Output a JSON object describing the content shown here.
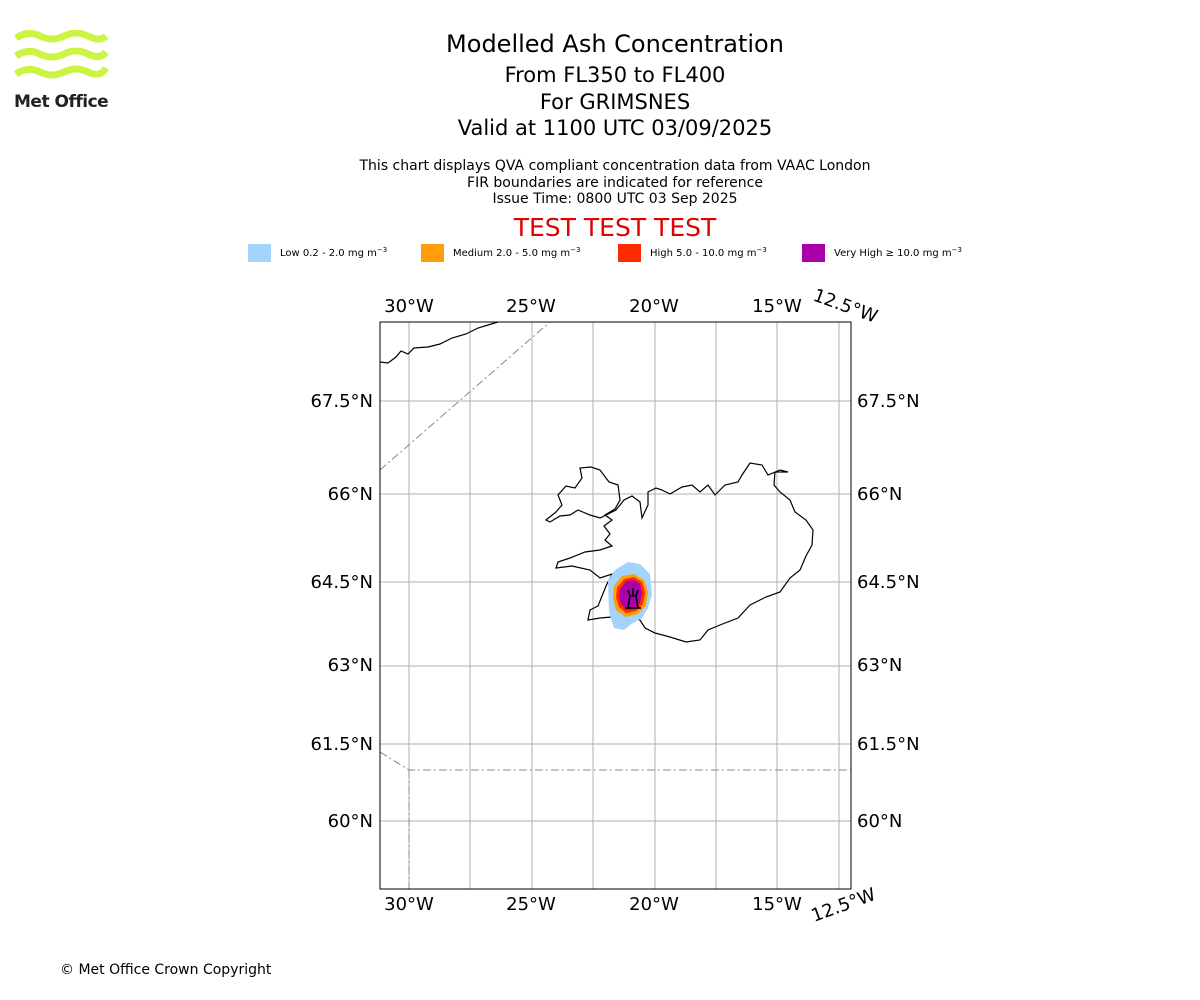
{
  "header": {
    "logo_text": "Met Office",
    "title": "Modelled Ash Concentration",
    "levels": "From FL350 to FL400",
    "volcano": "For GRIMSNES",
    "valid": "Valid at 1100 UTC 03/09/2025",
    "note1": "This chart displays QVA compliant concentration data from VAAC London",
    "note2": "FIR boundaries are indicated for reference",
    "issue": "Issue Time: 0800 UTC 03 Sep 2025",
    "test_banner": "TEST TEST TEST"
  },
  "legend": [
    {
      "label": "Low 0.2 - 2.0 mg m",
      "exp": "−3",
      "color": "#a4d4fb"
    },
    {
      "label": "Medium 2.0 - 5.0 mg m",
      "exp": "−3",
      "color": "#ff9e0b"
    },
    {
      "label": "High 5.0 - 10.0 mg m",
      "exp": "−3",
      "color": "#ff2c00"
    },
    {
      "label": "Very High ≥ 10.0 mg m",
      "exp": "−3",
      "color": "#aa00aa"
    }
  ],
  "map": {
    "lon_labels": [
      "30°W",
      "25°W",
      "20°W",
      "15°W",
      "12.5°W"
    ],
    "lat_labels": [
      "67.5°N",
      "66°N",
      "64.5°N",
      "63°N",
      "61.5°N",
      "60°N"
    ],
    "volcano_symbol": "volcano-icon"
  },
  "footer": "© Met Office Crown Copyright"
}
